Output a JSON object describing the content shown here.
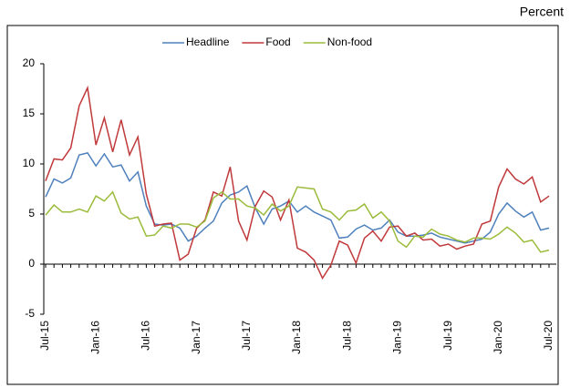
{
  "chart_data": {
    "type": "line",
    "unit_label": "Percent",
    "categories": [
      "Jul-15",
      null,
      null,
      null,
      null,
      null,
      "Jan-16",
      null,
      null,
      null,
      null,
      null,
      "Jul-16",
      null,
      null,
      null,
      null,
      null,
      "Jan-17",
      null,
      null,
      null,
      null,
      null,
      "Jul-17",
      null,
      null,
      null,
      null,
      null,
      "Jan-18",
      null,
      null,
      null,
      null,
      null,
      "Jul-18",
      null,
      null,
      null,
      null,
      null,
      "Jan-19",
      null,
      null,
      null,
      null,
      null,
      "Jul-19",
      null,
      null,
      null,
      null,
      null,
      "Jan-20",
      null,
      null,
      null,
      null,
      null,
      "Jul-20"
    ],
    "series": [
      {
        "name": "Headline",
        "color": "#4f81bd",
        "values": [
          6.7,
          8.5,
          8.1,
          8.6,
          10.9,
          11.1,
          9.8,
          11.0,
          9.7,
          9.9,
          8.3,
          9.2,
          5.8,
          4.0,
          3.9,
          4.0,
          3.6,
          2.3,
          2.8,
          3.6,
          4.3,
          6.1,
          6.9,
          7.2,
          7.8,
          5.6,
          4.0,
          5.5,
          5.8,
          6.3,
          5.2,
          5.8,
          5.2,
          4.8,
          4.4,
          2.6,
          2.7,
          3.5,
          3.9,
          3.4,
          3.6,
          4.4,
          3.2,
          2.8,
          2.8,
          2.9,
          3.1,
          2.7,
          2.5,
          2.3,
          2.1,
          2.3,
          2.5,
          3.2,
          5.0,
          6.1,
          5.3,
          4.7,
          5.2,
          3.4,
          3.6
        ]
      },
      {
        "name": "Food",
        "color": "#c0393b",
        "values": [
          8.3,
          10.5,
          10.4,
          11.6,
          15.8,
          17.6,
          11.9,
          14.6,
          11.2,
          14.4,
          10.9,
          12.7,
          7.0,
          3.8,
          4.0,
          4.1,
          0.4,
          1.0,
          3.6,
          4.4,
          7.2,
          6.8,
          9.7,
          4.3,
          2.4,
          5.8,
          7.3,
          6.7,
          4.4,
          6.4,
          1.6,
          1.2,
          0.4,
          -1.4,
          -0.1,
          2.3,
          1.9,
          0.1,
          2.6,
          3.3,
          2.3,
          3.7,
          3.8,
          2.8,
          3.1,
          2.4,
          2.5,
          1.8,
          2.0,
          1.5,
          1.8,
          2.0,
          4.0,
          4.3,
          7.7,
          9.5,
          8.5,
          8.0,
          8.7,
          6.2,
          6.8
        ]
      },
      {
        "name": "Non-food",
        "color": "#9bbb3b",
        "values": [
          4.9,
          5.9,
          5.2,
          5.2,
          5.5,
          5.2,
          6.8,
          6.3,
          7.2,
          5.1,
          4.5,
          4.7,
          2.8,
          2.9,
          3.8,
          3.6,
          4.0,
          4.0,
          3.7,
          4.3,
          6.6,
          7.2,
          6.5,
          6.5,
          5.8,
          5.6,
          4.9,
          6.0,
          5.3,
          5.8,
          7.7,
          7.6,
          7.5,
          5.5,
          5.2,
          4.4,
          5.3,
          5.4,
          6.0,
          4.6,
          5.2,
          4.3,
          2.3,
          1.7,
          2.8,
          2.7,
          3.5,
          3.0,
          2.8,
          2.4,
          2.2,
          2.6,
          2.6,
          2.5,
          3.0,
          3.7,
          3.1,
          2.2,
          2.4,
          1.2,
          1.4
        ]
      }
    ],
    "ylim": [
      -5,
      20
    ],
    "yticks": [
      -5,
      0,
      5,
      10,
      15,
      20
    ],
    "grid": false,
    "legend": "top"
  }
}
